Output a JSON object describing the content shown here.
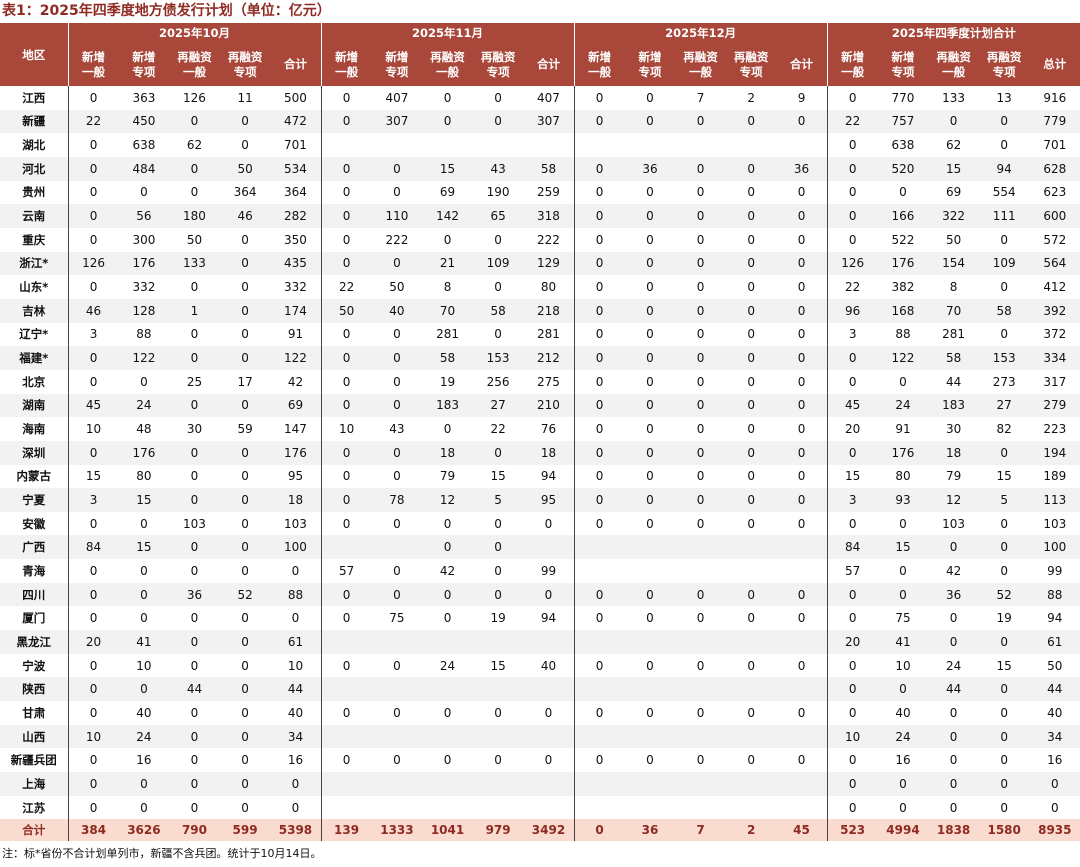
{
  "header": {
    "title": "表1：2025年四季度地方债发行计划（单位：亿元）"
  },
  "table": {
    "region_header": "地区",
    "groups": [
      "2025年10月",
      "2025年11月",
      "2025年12月",
      "2025年四季度计划合计"
    ],
    "subcolumns": [
      [
        "新增",
        "一般"
      ],
      [
        "新增",
        "专项"
      ],
      [
        "再融资",
        "一般"
      ],
      [
        "再融资",
        "专项"
      ],
      [
        "合计"
      ],
      [
        "新增",
        "一般"
      ],
      [
        "新增",
        "专项"
      ],
      [
        "再融资",
        "一般"
      ],
      [
        "再融资",
        "专项"
      ],
      [
        "合计"
      ],
      [
        "新增",
        "一般"
      ],
      [
        "新增",
        "专项"
      ],
      [
        "再融资",
        "一般"
      ],
      [
        "再融资",
        "专项"
      ],
      [
        "合计"
      ],
      [
        "新增",
        "一般"
      ],
      [
        "新增",
        "专项"
      ],
      [
        "再融资",
        "一般"
      ],
      [
        "再融资",
        "专项"
      ],
      [
        "总计"
      ]
    ],
    "rows": [
      {
        "region": "江西",
        "values": [
          0,
          363,
          126,
          11,
          500,
          0,
          407,
          0,
          0,
          407,
          0,
          0,
          7,
          2,
          9,
          0,
          770,
          133,
          13,
          916
        ]
      },
      {
        "region": "新疆",
        "values": [
          22,
          450,
          0,
          0,
          472,
          0,
          307,
          0,
          0,
          307,
          0,
          0,
          0,
          0,
          0,
          22,
          757,
          0,
          0,
          779
        ]
      },
      {
        "region": "湖北",
        "values": [
          0,
          638,
          62,
          0,
          701,
          null,
          null,
          null,
          null,
          null,
          null,
          null,
          null,
          null,
          null,
          0,
          638,
          62,
          0,
          701
        ]
      },
      {
        "region": "河北",
        "values": [
          0,
          484,
          0,
          50,
          534,
          0,
          0,
          15,
          43,
          58,
          0,
          36,
          0,
          0,
          36,
          0,
          520,
          15,
          94,
          628
        ]
      },
      {
        "region": "贵州",
        "values": [
          0,
          0,
          0,
          364,
          364,
          0,
          0,
          69,
          190,
          259,
          0,
          0,
          0,
          0,
          0,
          0,
          0,
          69,
          554,
          623
        ]
      },
      {
        "region": "云南",
        "values": [
          0,
          56,
          180,
          46,
          282,
          0,
          110,
          142,
          65,
          318,
          0,
          0,
          0,
          0,
          0,
          0,
          166,
          322,
          111,
          600
        ]
      },
      {
        "region": "重庆",
        "values": [
          0,
          300,
          50,
          0,
          350,
          0,
          222,
          0,
          0,
          222,
          0,
          0,
          0,
          0,
          0,
          0,
          522,
          50,
          0,
          572
        ]
      },
      {
        "region": "浙江*",
        "values": [
          126,
          176,
          133,
          0,
          435,
          0,
          0,
          21,
          109,
          129,
          0,
          0,
          0,
          0,
          0,
          126,
          176,
          154,
          109,
          564
        ]
      },
      {
        "region": "山东*",
        "values": [
          0,
          332,
          0,
          0,
          332,
          22,
          50,
          8,
          0,
          80,
          0,
          0,
          0,
          0,
          0,
          22,
          382,
          8,
          0,
          412
        ]
      },
      {
        "region": "吉林",
        "values": [
          46,
          128,
          1,
          0,
          174,
          50,
          40,
          70,
          58,
          218,
          0,
          0,
          0,
          0,
          0,
          96,
          168,
          70,
          58,
          392
        ]
      },
      {
        "region": "辽宁*",
        "values": [
          3,
          88,
          0,
          0,
          91,
          0,
          0,
          281,
          0,
          281,
          0,
          0,
          0,
          0,
          0,
          3,
          88,
          281,
          0,
          372
        ]
      },
      {
        "region": "福建*",
        "values": [
          0,
          122,
          0,
          0,
          122,
          0,
          0,
          58,
          153,
          212,
          0,
          0,
          0,
          0,
          0,
          0,
          122,
          58,
          153,
          334
        ]
      },
      {
        "region": "北京",
        "values": [
          0,
          0,
          25,
          17,
          42,
          0,
          0,
          19,
          256,
          275,
          0,
          0,
          0,
          0,
          0,
          0,
          0,
          44,
          273,
          317
        ]
      },
      {
        "region": "湖南",
        "values": [
          45,
          24,
          0,
          0,
          69,
          0,
          0,
          183,
          27,
          210,
          0,
          0,
          0,
          0,
          0,
          45,
          24,
          183,
          27,
          279
        ]
      },
      {
        "region": "海南",
        "values": [
          10,
          48,
          30,
          59,
          147,
          10,
          43,
          0,
          22,
          76,
          0,
          0,
          0,
          0,
          0,
          20,
          91,
          30,
          82,
          223
        ]
      },
      {
        "region": "深圳",
        "values": [
          0,
          176,
          0,
          0,
          176,
          0,
          0,
          18,
          0,
          18,
          0,
          0,
          0,
          0,
          0,
          0,
          176,
          18,
          0,
          194
        ]
      },
      {
        "region": "内蒙古",
        "values": [
          15,
          80,
          0,
          0,
          95,
          0,
          0,
          79,
          15,
          94,
          0,
          0,
          0,
          0,
          0,
          15,
          80,
          79,
          15,
          189
        ]
      },
      {
        "region": "宁夏",
        "values": [
          3,
          15,
          0,
          0,
          18,
          0,
          78,
          12,
          5,
          95,
          0,
          0,
          0,
          0,
          0,
          3,
          93,
          12,
          5,
          113
        ]
      },
      {
        "region": "安徽",
        "values": [
          0,
          0,
          103,
          0,
          103,
          0,
          0,
          0,
          0,
          0,
          0,
          0,
          0,
          0,
          0,
          0,
          0,
          103,
          0,
          103
        ]
      },
      {
        "region": "广西",
        "values": [
          84,
          15,
          0,
          0,
          100,
          null,
          null,
          0,
          0,
          null,
          null,
          null,
          null,
          null,
          null,
          84,
          15,
          0,
          0,
          100
        ]
      },
      {
        "region": "青海",
        "values": [
          0,
          0,
          0,
          0,
          0,
          57,
          0,
          42,
          0,
          99,
          null,
          null,
          null,
          null,
          null,
          57,
          0,
          42,
          0,
          99
        ]
      },
      {
        "region": "四川",
        "values": [
          0,
          0,
          36,
          52,
          88,
          0,
          0,
          0,
          0,
          0,
          0,
          0,
          0,
          0,
          0,
          0,
          0,
          36,
          52,
          88
        ]
      },
      {
        "region": "厦门",
        "values": [
          0,
          0,
          0,
          0,
          0,
          0,
          75,
          0,
          19,
          94,
          0,
          0,
          0,
          0,
          0,
          0,
          75,
          0,
          19,
          94
        ]
      },
      {
        "region": "黑龙江",
        "values": [
          20,
          41,
          0,
          0,
          61,
          null,
          null,
          null,
          null,
          null,
          null,
          null,
          null,
          null,
          null,
          20,
          41,
          0,
          0,
          61
        ]
      },
      {
        "region": "宁波",
        "values": [
          0,
          10,
          0,
          0,
          10,
          0,
          0,
          24,
          15,
          40,
          0,
          0,
          0,
          0,
          0,
          0,
          10,
          24,
          15,
          50
        ]
      },
      {
        "region": "陕西",
        "values": [
          0,
          0,
          44,
          0,
          44,
          null,
          null,
          null,
          null,
          null,
          null,
          null,
          null,
          null,
          null,
          0,
          0,
          44,
          0,
          44
        ]
      },
      {
        "region": "甘肃",
        "values": [
          0,
          40,
          0,
          0,
          40,
          0,
          0,
          0,
          0,
          0,
          0,
          0,
          0,
          0,
          0,
          0,
          40,
          0,
          0,
          40
        ]
      },
      {
        "region": "山西",
        "values": [
          10,
          24,
          0,
          0,
          34,
          null,
          null,
          null,
          null,
          null,
          null,
          null,
          null,
          null,
          null,
          10,
          24,
          0,
          0,
          34
        ]
      },
      {
        "region": "新疆兵团",
        "values": [
          0,
          16,
          0,
          0,
          16,
          0,
          0,
          0,
          0,
          0,
          0,
          0,
          0,
          0,
          0,
          0,
          16,
          0,
          0,
          16
        ]
      },
      {
        "region": "上海",
        "values": [
          0,
          0,
          0,
          0,
          0,
          null,
          null,
          null,
          null,
          null,
          null,
          null,
          null,
          null,
          null,
          0,
          0,
          0,
          0,
          0
        ]
      },
      {
        "region": "江苏",
        "values": [
          0,
          0,
          0,
          0,
          0,
          null,
          null,
          null,
          null,
          null,
          null,
          null,
          null,
          null,
          null,
          0,
          0,
          0,
          0,
          0
        ]
      }
    ],
    "total": {
      "label": "合计",
      "values": [
        384,
        3626,
        790,
        599,
        5398,
        139,
        1333,
        1041,
        979,
        3492,
        0,
        36,
        7,
        2,
        45,
        523,
        4994,
        1838,
        1580,
        8935
      ]
    }
  },
  "footer": {
    "note": "注：标*省份不合计划单列市，新疆不含兵团。统计于10月14日。"
  }
}
